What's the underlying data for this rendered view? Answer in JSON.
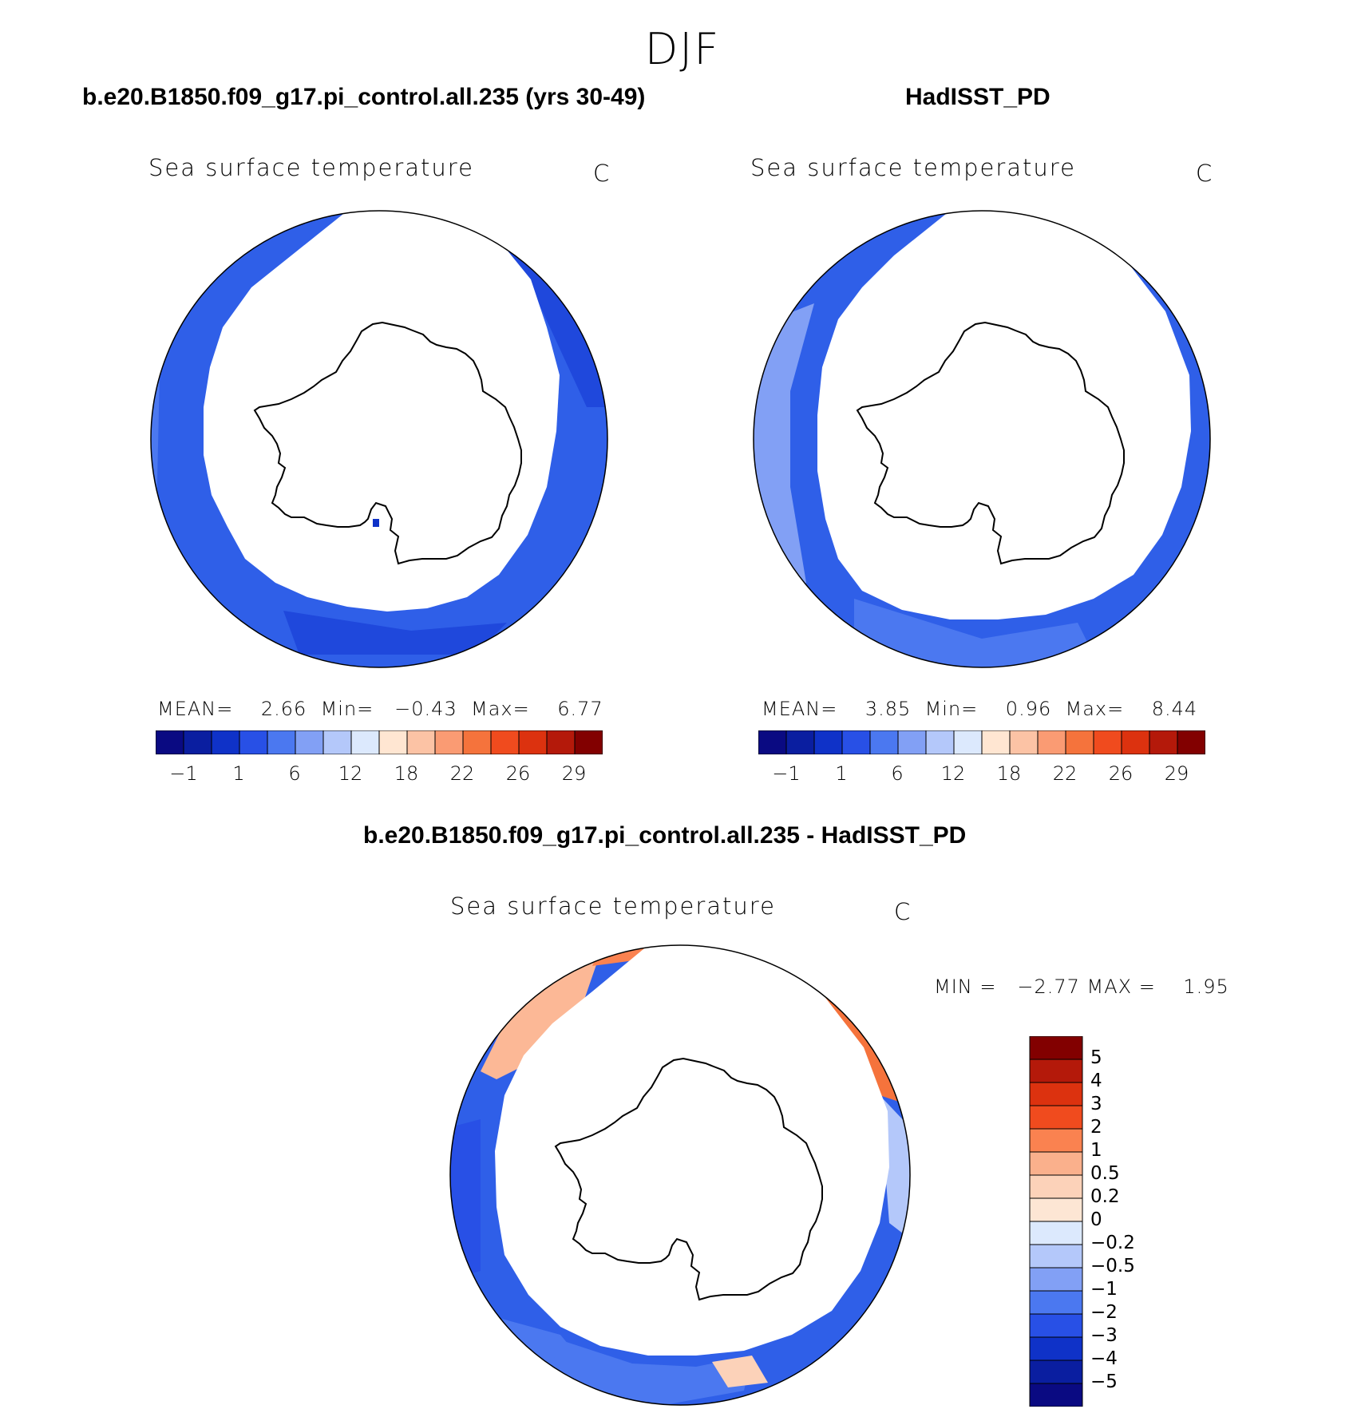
{
  "figure_title": "DJF",
  "panels": [
    {
      "case_title": "b.e20.B1850.f09_g17.pi_control.all.235 (yrs 30-49)",
      "variable": "Sea surface temperature",
      "units": "C",
      "stats": {
        "mean_label": "MEAN=",
        "mean": "2.66",
        "min_label": "Min=",
        "min": "−0.43",
        "max_label": "Max=",
        "max": "6.77"
      }
    },
    {
      "case_title": "HadISST_PD",
      "variable": "Sea surface temperature",
      "units": "C",
      "stats": {
        "mean_label": "MEAN=",
        "mean": "3.85",
        "min_label": "Min=",
        "min": "0.96",
        "max_label": "Max=",
        "max": "8.44"
      }
    }
  ],
  "diff_panel": {
    "case_title": "b.e20.B1850.f09_g17.pi_control.all.235 - HadISST_PD",
    "variable": "Sea surface temperature",
    "units": "C",
    "minmax": "MIN =   −2.77 MAX =    1.95"
  },
  "abs_colorbar": {
    "colors": [
      "#0a0a82",
      "#0a1ea0",
      "#0f32c8",
      "#2850e6",
      "#4b78f0",
      "#82a0f5",
      "#b4c8fa",
      "#dce9fd",
      "#ffe6d2",
      "#fcc3a5",
      "#fa9b73",
      "#f5733c",
      "#f04b1e",
      "#dc320f",
      "#b4190a",
      "#820000"
    ],
    "tick_labels": [
      "−1",
      "1",
      "6",
      "12",
      "18",
      "22",
      "26",
      "29"
    ]
  },
  "diff_colorbar": {
    "colors_top_to_bottom": [
      "#820000",
      "#b4190a",
      "#dc320f",
      "#f04b1e",
      "#fa8250",
      "#fab08c",
      "#fcd2b9",
      "#fde6d4",
      "#dce9fd",
      "#b4c8fa",
      "#82a0f5",
      "#4b78f0",
      "#2850e6",
      "#0f32c8",
      "#0a1ea0",
      "#0a0a82"
    ],
    "tick_labels": [
      "5",
      "4",
      "3",
      "2",
      "1",
      "0.5",
      "0.2",
      "0",
      "−0.2",
      "−0.5",
      "−1",
      "−2",
      "−3",
      "−4",
      "−5"
    ]
  },
  "chart_data": {
    "type": "heatmap",
    "projection": "south polar stereographic",
    "region": "Southern Ocean / Antarctica",
    "panels": [
      {
        "name": "b.e20.B1850.f09_g17.pi_control.all.235 (yrs 30-49)",
        "mean": 2.66,
        "min": -0.43,
        "max": 6.77,
        "levels": [
          -1,
          0,
          1,
          3,
          6,
          9,
          12,
          15,
          18,
          20,
          22,
          24,
          26,
          28,
          29
        ]
      },
      {
        "name": "HadISST_PD",
        "mean": 3.85,
        "min": 0.96,
        "max": 8.44,
        "levels": [
          -1,
          0,
          1,
          3,
          6,
          9,
          12,
          15,
          18,
          20,
          22,
          24,
          26,
          28,
          29
        ]
      },
      {
        "name": "b.e20.B1850.f09_g17.pi_control.all.235 - HadISST_PD",
        "min": -2.77,
        "max": 1.95,
        "levels": [
          -5,
          -4,
          -3,
          -2,
          -1,
          -0.5,
          -0.2,
          0,
          0.2,
          0.5,
          1,
          2,
          3,
          4,
          5
        ]
      }
    ]
  }
}
